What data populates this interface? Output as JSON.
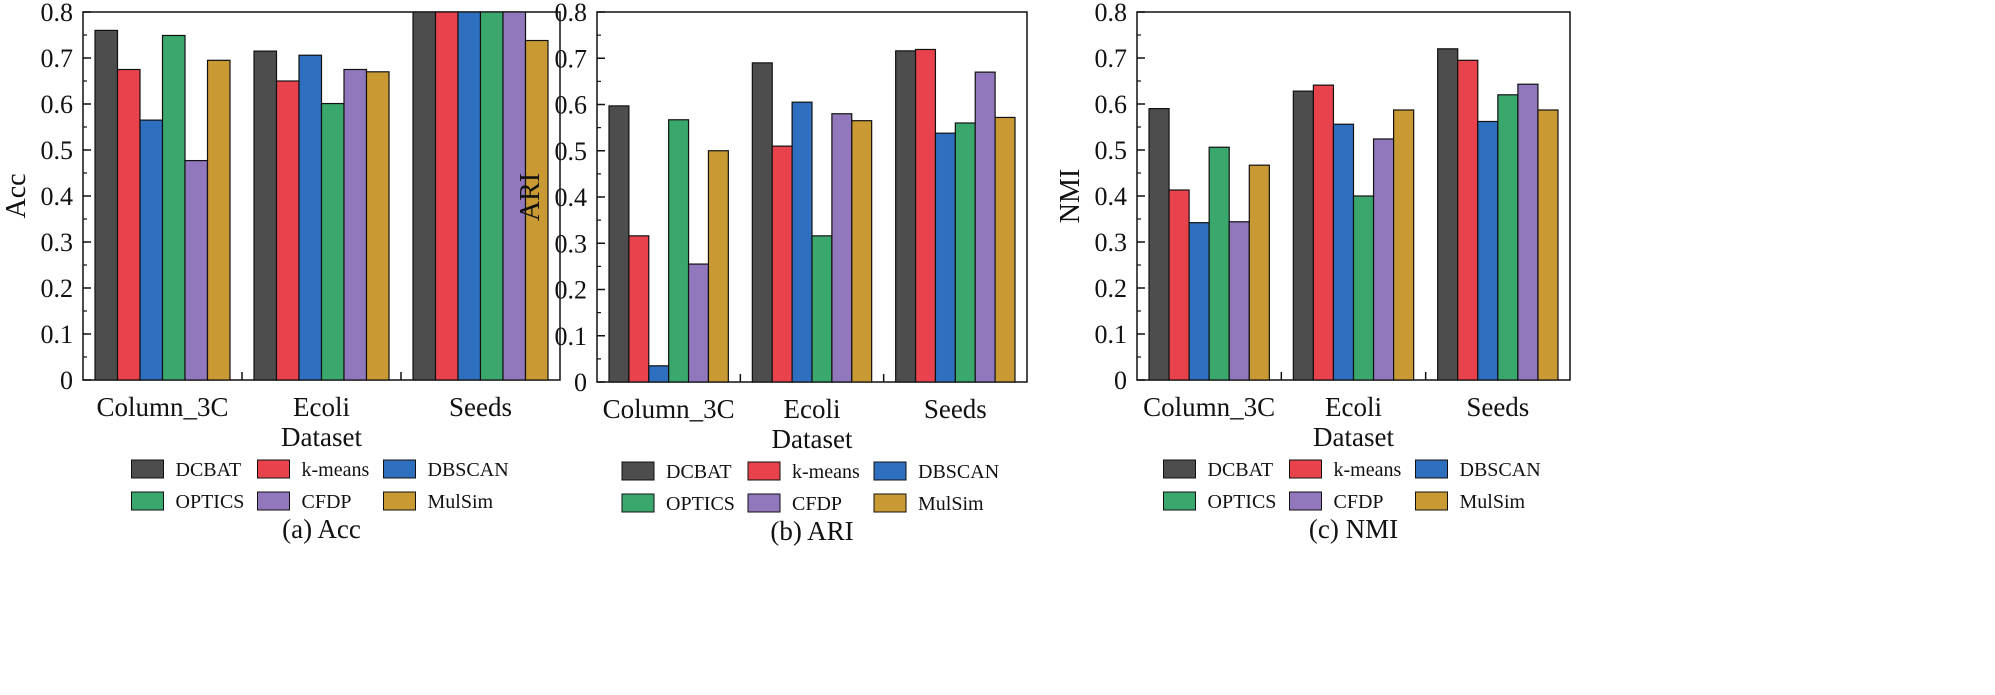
{
  "chart_data": [
    {
      "type": "bar",
      "caption": "(a) Acc",
      "ylabel": "Acc",
      "xlabel": "Dataset",
      "ylim": [
        0,
        0.8
      ],
      "yticks": [
        "0",
        "0.1",
        "0.2",
        "0.3",
        "0.4",
        "0.5",
        "0.6",
        "0.7",
        "0.8"
      ],
      "categories": [
        "Column_3C",
        "Ecoli",
        "Seeds"
      ],
      "series": [
        {
          "name": "DCBAT",
          "color": "#4d4d4d",
          "values": [
            0.76,
            0.715,
            0.8
          ]
        },
        {
          "name": "k-means",
          "color": "#e8424c",
          "values": [
            0.675,
            0.65,
            0.8
          ]
        },
        {
          "name": "DBSCAN",
          "color": "#2f6fc0",
          "values": [
            0.565,
            0.706,
            0.8
          ]
        },
        {
          "name": "OPTICS",
          "color": "#3aa76d",
          "values": [
            0.749,
            0.601,
            0.8
          ]
        },
        {
          "name": "CFDP",
          "color": "#9178bd",
          "values": [
            0.477,
            0.675,
            0.8
          ]
        },
        {
          "name": "MulSim",
          "color": "#c99a34",
          "values": [
            0.695,
            0.67,
            0.738
          ]
        }
      ]
    },
    {
      "type": "bar",
      "caption": "(b) ARI",
      "ylabel": "ARI",
      "xlabel": "Dataset",
      "ylim": [
        0,
        0.8
      ],
      "yticks": [
        "0",
        "0.1",
        "0.2",
        "0.3",
        "0.4",
        "0.5",
        "0.6",
        "0.7",
        "0.8"
      ],
      "categories": [
        "Column_3C",
        "Ecoli",
        "Seeds"
      ],
      "series": [
        {
          "name": "DCBAT",
          "color": "#4d4d4d",
          "values": [
            0.597,
            0.69,
            0.716
          ]
        },
        {
          "name": "k-means",
          "color": "#e8424c",
          "values": [
            0.316,
            0.51,
            0.719
          ]
        },
        {
          "name": "DBSCAN",
          "color": "#2f6fc0",
          "values": [
            0.035,
            0.605,
            0.538
          ]
        },
        {
          "name": "OPTICS",
          "color": "#3aa76d",
          "values": [
            0.567,
            0.316,
            0.56
          ]
        },
        {
          "name": "CFDP",
          "color": "#9178bd",
          "values": [
            0.255,
            0.58,
            0.67
          ]
        },
        {
          "name": "MulSim",
          "color": "#c99a34",
          "values": [
            0.5,
            0.565,
            0.572
          ]
        }
      ]
    },
    {
      "type": "bar",
      "caption": "(c) NMI",
      "ylabel": "NMI",
      "xlabel": "Dataset",
      "ylim": [
        0,
        0.8
      ],
      "yticks": [
        "0",
        "0.1",
        "0.2",
        "0.3",
        "0.4",
        "0.5",
        "0.6",
        "0.7",
        "0.8"
      ],
      "categories": [
        "Column_3C",
        "Ecoli",
        "Seeds"
      ],
      "series": [
        {
          "name": "DCBAT",
          "color": "#4d4d4d",
          "values": [
            0.59,
            0.628,
            0.72
          ]
        },
        {
          "name": "k-means",
          "color": "#e8424c",
          "values": [
            0.413,
            0.641,
            0.695
          ]
        },
        {
          "name": "DBSCAN",
          "color": "#2f6fc0",
          "values": [
            0.342,
            0.556,
            0.562
          ]
        },
        {
          "name": "OPTICS",
          "color": "#3aa76d",
          "values": [
            0.506,
            0.4,
            0.62
          ]
        },
        {
          "name": "CFDP",
          "color": "#9178bd",
          "values": [
            0.344,
            0.524,
            0.643
          ]
        },
        {
          "name": "MulSim",
          "color": "#c99a34",
          "values": [
            0.467,
            0.587,
            0.587
          ]
        }
      ]
    }
  ]
}
